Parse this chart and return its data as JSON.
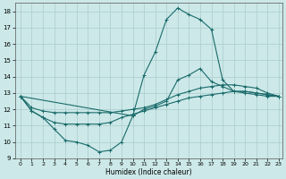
{
  "xlabel": "Humidex (Indice chaleur)",
  "xlim": [
    -0.5,
    23.3
  ],
  "ylim": [
    9,
    18.5
  ],
  "yticks": [
    9,
    10,
    11,
    12,
    13,
    14,
    15,
    16,
    17,
    18
  ],
  "xticks": [
    0,
    1,
    2,
    3,
    4,
    5,
    6,
    7,
    8,
    9,
    10,
    11,
    12,
    13,
    14,
    15,
    16,
    17,
    18,
    19,
    20,
    21,
    22,
    23
  ],
  "background_color": "#cce8e8",
  "grid_color": "#aacccc",
  "line_color": "#1a6b6b",
  "lines": [
    {
      "x": [
        0,
        1,
        2,
        3,
        4,
        5,
        6,
        7,
        8,
        9,
        10,
        11,
        12,
        13,
        14,
        15,
        16,
        17,
        18,
        19,
        20,
        21,
        22,
        23
      ],
      "y": [
        12.8,
        11.9,
        11.5,
        10.8,
        10.1,
        10.0,
        9.8,
        9.4,
        9.5,
        10.0,
        11.6,
        12.0,
        12.2,
        12.5,
        13.8,
        14.1,
        14.5,
        13.7,
        13.4,
        13.1,
        13.0,
        12.9,
        12.8,
        12.8
      ]
    },
    {
      "x": [
        0,
        1,
        2,
        3,
        4,
        5,
        6,
        7,
        8,
        9,
        10,
        11,
        12,
        13,
        14,
        15,
        16,
        17,
        18,
        19,
        20,
        21,
        22,
        23
      ],
      "y": [
        12.8,
        11.9,
        11.5,
        11.2,
        11.1,
        11.1,
        11.1,
        11.1,
        11.2,
        11.5,
        11.7,
        11.9,
        12.1,
        12.3,
        12.5,
        12.7,
        12.8,
        12.9,
        13.0,
        13.1,
        13.1,
        13.0,
        12.9,
        12.8
      ]
    },
    {
      "x": [
        0,
        1,
        2,
        3,
        4,
        5,
        6,
        7,
        8,
        9,
        10,
        11,
        12,
        13,
        14,
        15,
        16,
        17,
        18,
        19,
        20,
        21,
        22,
        23
      ],
      "y": [
        12.8,
        12.1,
        11.9,
        11.8,
        11.8,
        11.8,
        11.8,
        11.8,
        11.8,
        11.9,
        12.0,
        12.1,
        12.3,
        12.6,
        12.9,
        13.1,
        13.3,
        13.4,
        13.5,
        13.5,
        13.4,
        13.3,
        13.0,
        12.8
      ]
    },
    {
      "x": [
        0,
        10,
        11,
        12,
        13,
        14,
        15,
        16,
        17,
        18,
        19,
        20,
        21,
        22,
        23
      ],
      "y": [
        12.8,
        11.6,
        14.1,
        15.5,
        17.5,
        18.2,
        17.8,
        17.5,
        16.9,
        13.8,
        13.1,
        13.1,
        13.0,
        12.9,
        12.8
      ]
    }
  ]
}
